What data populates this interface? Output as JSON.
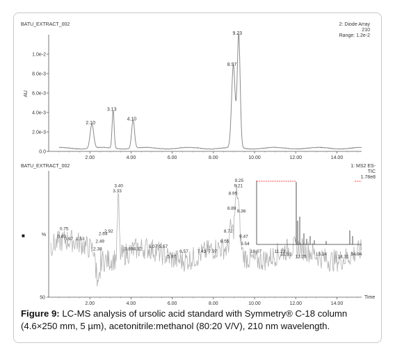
{
  "chart_data": [
    {
      "type": "line",
      "panel_label": "BATU_EXTRACT_002",
      "detector_lines": [
        "2: Diode Array",
        "210",
        "Range: 1.2e-2"
      ],
      "ylabel": "AU",
      "xlim": [
        0,
        15.2
      ],
      "ylim": [
        0,
        0.0012
      ],
      "x_ticks": [
        "2.00",
        "4.00",
        "6.00",
        "8.00",
        "10.00",
        "12.00",
        "14.00"
      ],
      "y_ticks": [
        "0.0",
        "2.0e-3",
        "4.0e-3",
        "6.0e-3",
        "8.0e-3",
        "1.0e-2"
      ],
      "peaks": [
        {
          "label": "2.10",
          "x": 2.1,
          "y": 0.00025
        },
        {
          "label": "3.13",
          "x": 3.13,
          "y": 0.00039
        },
        {
          "label": "4.10",
          "x": 4.1,
          "y": 0.00029
        },
        {
          "label": "8.97",
          "x": 8.97,
          "y": 0.00085
        },
        {
          "label": "9.23",
          "x": 9.23,
          "y": 0.00117
        }
      ]
    },
    {
      "type": "line",
      "panel_label": "BATU_EXTRACT_002",
      "detector_lines": [
        "1: MS2 ES-",
        "TIC",
        "1.78e8"
      ],
      "ylabel": "%",
      "xlabel": "Time",
      "xlim": [
        0,
        15.2
      ],
      "ylim": [
        50,
        100
      ],
      "x_ticks": [
        "2.00",
        "4.00",
        "6.00",
        "8.00",
        "10.00",
        "12.00",
        "14.00"
      ],
      "y_ticks": [
        "50"
      ],
      "peaks": [
        {
          "label": "0.63",
          "x": 0.63,
          "y": 73
        },
        {
          "label": "0.75",
          "x": 0.75,
          "y": 76
        },
        {
          "label": "0.97",
          "x": 0.97,
          "y": 72
        },
        {
          "label": "1.53",
          "x": 1.53,
          "y": 72
        },
        {
          "label": "2.38",
          "x": 2.38,
          "y": 68
        },
        {
          "label": "2.49",
          "x": 2.49,
          "y": 71
        },
        {
          "label": "2.64",
          "x": 2.64,
          "y": 74
        },
        {
          "label": "2.92",
          "x": 2.92,
          "y": 75
        },
        {
          "label": "3.33",
          "x": 3.33,
          "y": 91
        },
        {
          "label": "3.40",
          "x": 3.4,
          "y": 93
        },
        {
          "label": "3.89",
          "x": 3.89,
          "y": 68
        },
        {
          "label": "4.32",
          "x": 4.32,
          "y": 68
        },
        {
          "label": "5.07",
          "x": 5.07,
          "y": 69
        },
        {
          "label": "5.57",
          "x": 5.57,
          "y": 69
        },
        {
          "label": "5.97",
          "x": 5.97,
          "y": 65
        },
        {
          "label": "6.57",
          "x": 6.57,
          "y": 67
        },
        {
          "label": "7.43",
          "x": 7.43,
          "y": 67
        },
        {
          "label": "7.97",
          "x": 7.97,
          "y": 67
        },
        {
          "label": "8.55",
          "x": 8.55,
          "y": 71
        },
        {
          "label": "8.72",
          "x": 8.72,
          "y": 75
        },
        {
          "label": "8.89",
          "x": 8.89,
          "y": 84
        },
        {
          "label": "8.95",
          "x": 8.95,
          "y": 90
        },
        {
          "label": "9.21",
          "x": 9.21,
          "y": 93
        },
        {
          "label": "9.25",
          "x": 9.25,
          "y": 95
        },
        {
          "label": "9.36",
          "x": 9.36,
          "y": 83
        },
        {
          "label": "9.47",
          "x": 9.47,
          "y": 73
        },
        {
          "label": "9.54",
          "x": 9.54,
          "y": 70
        },
        {
          "label": "10.07",
          "x": 10.07,
          "y": 67
        },
        {
          "label": "11.23",
          "x": 11.23,
          "y": 67
        },
        {
          "label": "11.53",
          "x": 11.53,
          "y": 66
        },
        {
          "label": "12.25",
          "x": 12.25,
          "y": 65
        },
        {
          "label": "13.24",
          "x": 13.24,
          "y": 66
        },
        {
          "label": "14.31",
          "x": 14.31,
          "y": 65
        },
        {
          "label": "14.94",
          "x": 14.94,
          "y": 66
        }
      ],
      "inset": {
        "type": "spectrum",
        "note": "small mass-spectrum inset with red dashed scale line"
      }
    }
  ],
  "caption": {
    "label": "Figure 9:",
    "text": " LC-MS analysis of ursolic acid standard with Symmetry® C-18 column (4.6×250 mm, 5 µm), acetonitrile:methanol (80:20 V/V), 210 nm wavelength."
  },
  "colors": {
    "trace_top": "#8a8a8a",
    "trace_bottom": "#b0b0b0",
    "axis": "#555555",
    "inset_line": "#ff4040"
  },
  "misc": {
    "marker_symbol": "■"
  }
}
